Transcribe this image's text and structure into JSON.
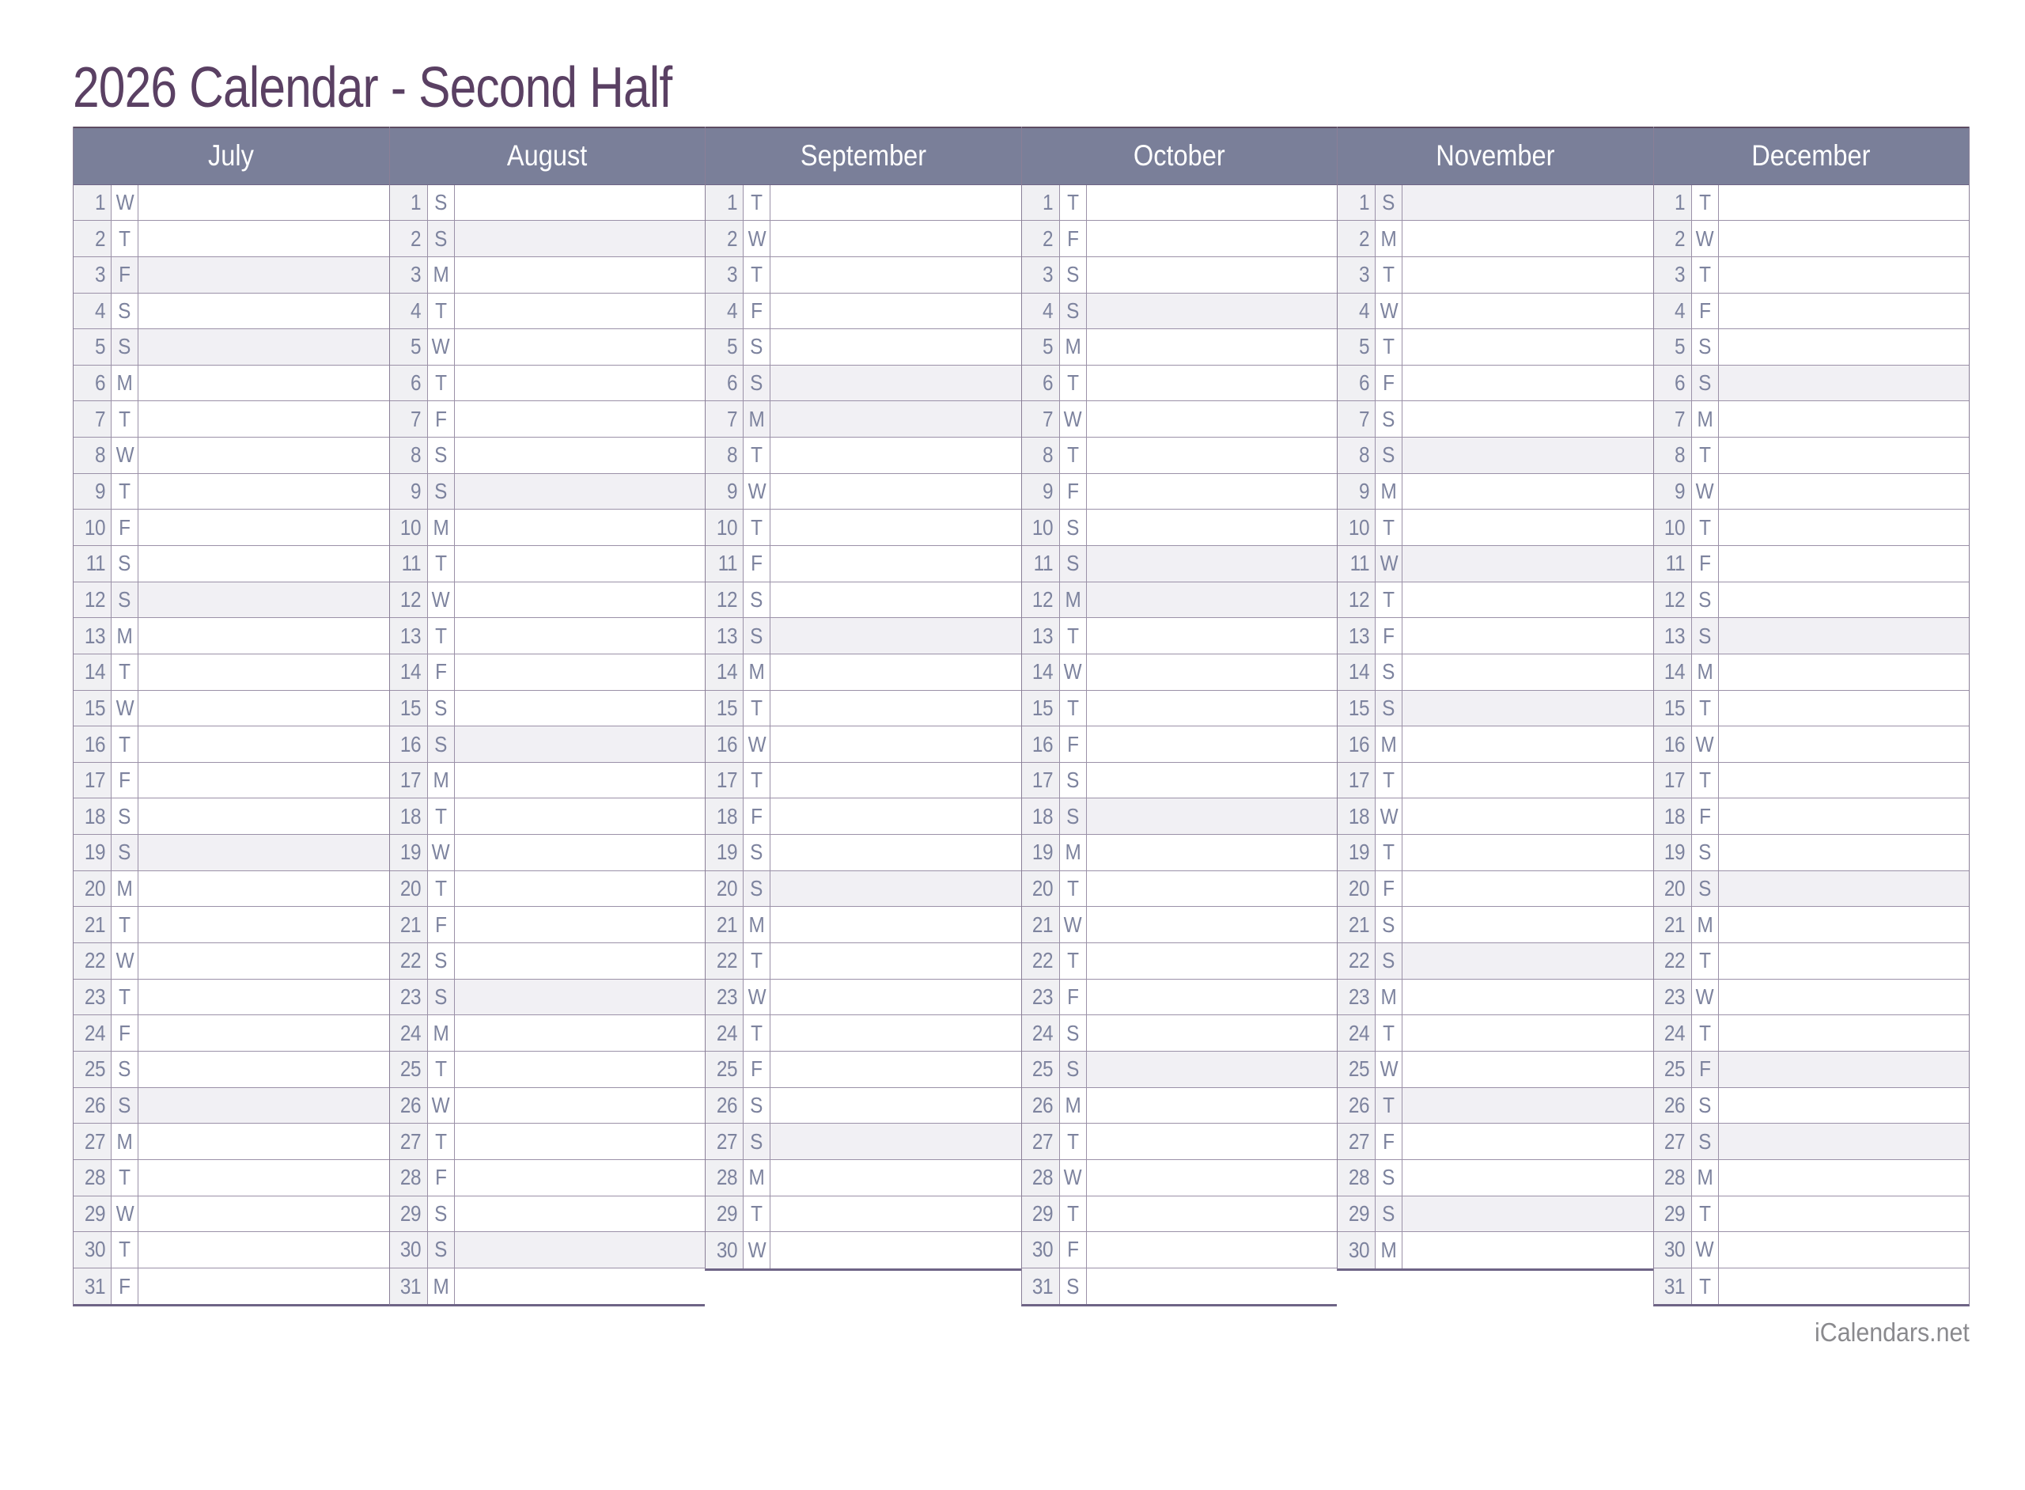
{
  "title": "2026 Calendar - Second Half",
  "footer": {
    "site": "iCalendars.net"
  },
  "colors": {
    "title_text": "#5A4063",
    "header_bg": "#7A7F99",
    "header_text": "#FFFFFF",
    "day_text": "#7D839E",
    "number_cell_bg": "#F0F0F3",
    "shaded_row_bg": "#F1F0F4",
    "grid_line": "#9B91A8",
    "column_border": "#8A7F97",
    "column_bottom_border": "#6E6486",
    "footer_text": "#8A8A8E"
  },
  "months": [
    {
      "name": "July",
      "days": 31,
      "letters": "WTFSSMTWTFSSMTWTFSSMTWTFSSMTWTF",
      "shaded": [
        3,
        5,
        12,
        19,
        26
      ]
    },
    {
      "name": "August",
      "days": 31,
      "letters": "SSMTWTFSSMTWTFSSMTWTFSSMTWTFSSM",
      "shaded": [
        2,
        9,
        16,
        23,
        30
      ]
    },
    {
      "name": "September",
      "days": 30,
      "letters": "TWTFSSMTWTFSSMTWTFSSMTWTFSSMTW",
      "shaded": [
        6,
        7,
        13,
        20,
        27
      ]
    },
    {
      "name": "October",
      "days": 31,
      "letters": "TFSSMTWTFSSMTWTFSSMTWTFSSMTWTFS",
      "shaded": [
        4,
        11,
        12,
        18,
        25
      ]
    },
    {
      "name": "November",
      "days": 30,
      "letters": "SMTWTFSSMTWTFSSMTWTFSSMTWTFSSM",
      "shaded": [
        1,
        8,
        11,
        15,
        22,
        26,
        29
      ]
    },
    {
      "name": "December",
      "days": 31,
      "letters": "TWTFSSMTWTFSSMTWTFSSMTWTFSSMTWT",
      "shaded": [
        6,
        13,
        20,
        25,
        27
      ]
    }
  ]
}
